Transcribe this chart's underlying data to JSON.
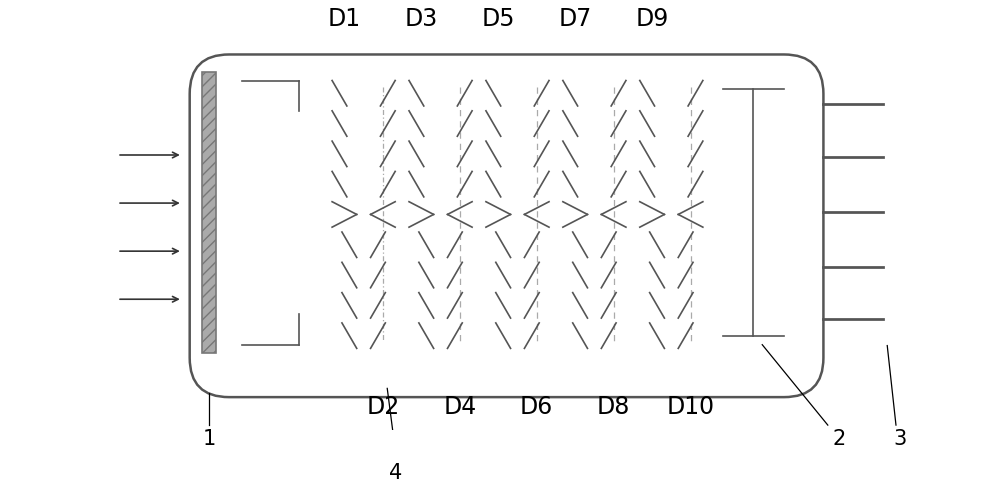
{
  "fig_width": 10.0,
  "fig_height": 4.83,
  "dpi": 100,
  "bg_color": "#ffffff",
  "line_color": "#555555",
  "dark_line_color": "#333333",
  "labels_top": [
    "D1",
    "D3",
    "D5",
    "D7",
    "D9"
  ],
  "labels_bottom": [
    "D2",
    "D4",
    "D6",
    "D8",
    "D10"
  ],
  "arrow_label": "1",
  "label_2": "2",
  "label_3": "3",
  "label_4": "4",
  "n_dynode_pairs": 5,
  "n_rows": 9
}
